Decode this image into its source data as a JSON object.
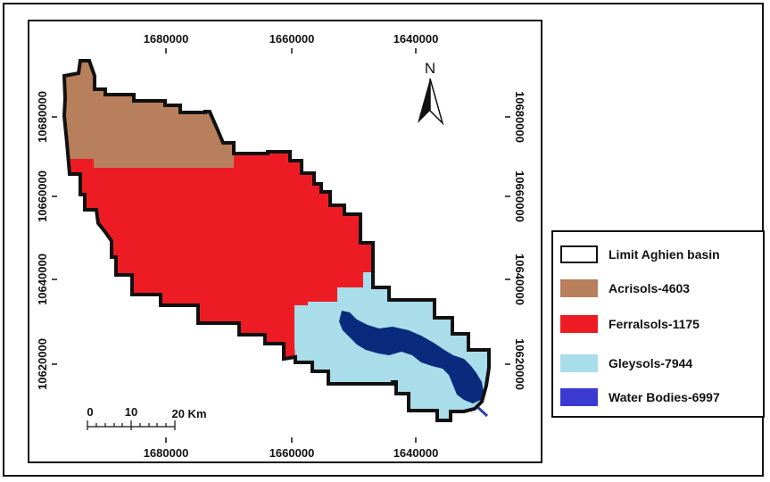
{
  "map": {
    "top_ticks": [
      "1680000",
      "1660000",
      "1640000"
    ],
    "bottom_ticks": [
      "1680000",
      "1660000",
      "1640000"
    ],
    "left_ticks": [
      "10680000",
      "10660000",
      "10640000",
      "10620000"
    ],
    "right_ticks": [
      "10680000",
      "10660000",
      "10640000",
      "10620000"
    ],
    "north_label": "N",
    "scale_labels": [
      "0",
      "10",
      "20 Km"
    ],
    "colors": {
      "acrisols": "#b87f5c",
      "ferralsols": "#ed1c24",
      "gleysols": "#a8dde9",
      "water": "#0a2a7d",
      "boundary": "#111111"
    }
  },
  "legend": {
    "items": [
      {
        "label": "Limit Aghien basin",
        "color": "#ffffff",
        "border": "#111111"
      },
      {
        "label": "Acrisols-4603",
        "color": "#b87f5c",
        "border": "#b87f5c"
      },
      {
        "label": " Ferralsols-1175",
        "color": "#ed1c24",
        "border": "#ed1c24"
      },
      {
        "label": "Gleysols-7944",
        "color": "#a8dde9",
        "border": "#a8dde9"
      },
      {
        "label": "Water Bodies-6997",
        "color": "#3a3ad0",
        "border": "#3a3ad0"
      }
    ]
  }
}
